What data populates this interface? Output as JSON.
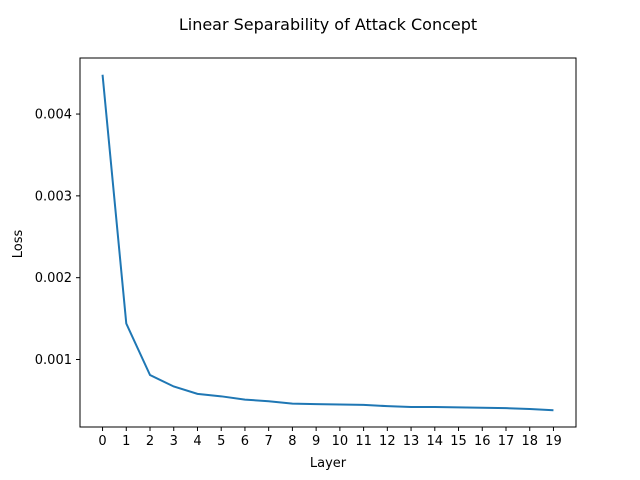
{
  "chart_data": {
    "type": "line",
    "title": "Linear Separability of Attack Concept",
    "xlabel": "Layer",
    "ylabel": "Loss",
    "x": [
      0,
      1,
      2,
      3,
      4,
      5,
      6,
      7,
      8,
      9,
      10,
      11,
      12,
      13,
      14,
      15,
      16,
      17,
      18,
      19
    ],
    "series": [
      {
        "values": [
          0.00448,
          0.00144,
          0.00081,
          0.00067,
          0.00058,
          0.00055,
          0.00051,
          0.00049,
          0.00046,
          0.000455,
          0.00045,
          0.000445,
          0.00043,
          0.00042,
          0.00042,
          0.000415,
          0.00041,
          0.000405,
          0.000395,
          0.00038
        ],
        "color": "#1f77b4"
      }
    ],
    "xticks": [
      "0",
      "1",
      "2",
      "3",
      "4",
      "5",
      "6",
      "7",
      "8",
      "9",
      "10",
      "11",
      "12",
      "13",
      "14",
      "15",
      "16",
      "17",
      "18",
      "19"
    ],
    "yticks": [
      "0.001",
      "0.002",
      "0.003",
      "0.004"
    ],
    "ytick_values": [
      0.001,
      0.002,
      0.003,
      0.004
    ],
    "xlim": [
      -0.95,
      19.95
    ],
    "ylim": [
      0.000175,
      0.004685
    ],
    "grid": false,
    "legend": "none"
  }
}
